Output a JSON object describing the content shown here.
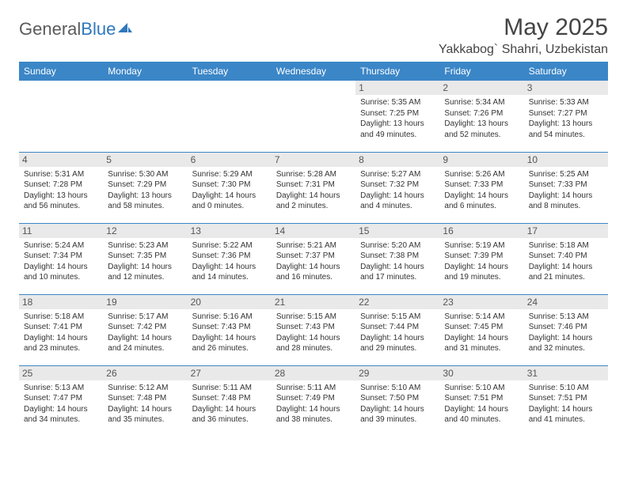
{
  "brand": {
    "part1": "General",
    "part2": "Blue"
  },
  "title": "May 2025",
  "location": "Yakkabog` Shahri, Uzbekistan",
  "colors": {
    "header_bg": "#3b86c7",
    "header_text": "#ffffff",
    "daynum_bg": "#e9e9e9",
    "border": "#3b86c7",
    "title_color": "#444444",
    "logo_gray": "#5a5a5a",
    "logo_blue": "#2f78bd"
  },
  "font": {
    "family": "Arial",
    "title_size_pt": 22,
    "header_size_pt": 9,
    "body_size_pt": 7.5
  },
  "weekdays": [
    "Sunday",
    "Monday",
    "Tuesday",
    "Wednesday",
    "Thursday",
    "Friday",
    "Saturday"
  ],
  "weeks": [
    [
      null,
      null,
      null,
      null,
      {
        "n": "1",
        "sunrise": "5:35 AM",
        "sunset": "7:25 PM",
        "daylight": "13 hours and 49 minutes."
      },
      {
        "n": "2",
        "sunrise": "5:34 AM",
        "sunset": "7:26 PM",
        "daylight": "13 hours and 52 minutes."
      },
      {
        "n": "3",
        "sunrise": "5:33 AM",
        "sunset": "7:27 PM",
        "daylight": "13 hours and 54 minutes."
      }
    ],
    [
      {
        "n": "4",
        "sunrise": "5:31 AM",
        "sunset": "7:28 PM",
        "daylight": "13 hours and 56 minutes."
      },
      {
        "n": "5",
        "sunrise": "5:30 AM",
        "sunset": "7:29 PM",
        "daylight": "13 hours and 58 minutes."
      },
      {
        "n": "6",
        "sunrise": "5:29 AM",
        "sunset": "7:30 PM",
        "daylight": "14 hours and 0 minutes."
      },
      {
        "n": "7",
        "sunrise": "5:28 AM",
        "sunset": "7:31 PM",
        "daylight": "14 hours and 2 minutes."
      },
      {
        "n": "8",
        "sunrise": "5:27 AM",
        "sunset": "7:32 PM",
        "daylight": "14 hours and 4 minutes."
      },
      {
        "n": "9",
        "sunrise": "5:26 AM",
        "sunset": "7:33 PM",
        "daylight": "14 hours and 6 minutes."
      },
      {
        "n": "10",
        "sunrise": "5:25 AM",
        "sunset": "7:33 PM",
        "daylight": "14 hours and 8 minutes."
      }
    ],
    [
      {
        "n": "11",
        "sunrise": "5:24 AM",
        "sunset": "7:34 PM",
        "daylight": "14 hours and 10 minutes."
      },
      {
        "n": "12",
        "sunrise": "5:23 AM",
        "sunset": "7:35 PM",
        "daylight": "14 hours and 12 minutes."
      },
      {
        "n": "13",
        "sunrise": "5:22 AM",
        "sunset": "7:36 PM",
        "daylight": "14 hours and 14 minutes."
      },
      {
        "n": "14",
        "sunrise": "5:21 AM",
        "sunset": "7:37 PM",
        "daylight": "14 hours and 16 minutes."
      },
      {
        "n": "15",
        "sunrise": "5:20 AM",
        "sunset": "7:38 PM",
        "daylight": "14 hours and 17 minutes."
      },
      {
        "n": "16",
        "sunrise": "5:19 AM",
        "sunset": "7:39 PM",
        "daylight": "14 hours and 19 minutes."
      },
      {
        "n": "17",
        "sunrise": "5:18 AM",
        "sunset": "7:40 PM",
        "daylight": "14 hours and 21 minutes."
      }
    ],
    [
      {
        "n": "18",
        "sunrise": "5:18 AM",
        "sunset": "7:41 PM",
        "daylight": "14 hours and 23 minutes."
      },
      {
        "n": "19",
        "sunrise": "5:17 AM",
        "sunset": "7:42 PM",
        "daylight": "14 hours and 24 minutes."
      },
      {
        "n": "20",
        "sunrise": "5:16 AM",
        "sunset": "7:43 PM",
        "daylight": "14 hours and 26 minutes."
      },
      {
        "n": "21",
        "sunrise": "5:15 AM",
        "sunset": "7:43 PM",
        "daylight": "14 hours and 28 minutes."
      },
      {
        "n": "22",
        "sunrise": "5:15 AM",
        "sunset": "7:44 PM",
        "daylight": "14 hours and 29 minutes."
      },
      {
        "n": "23",
        "sunrise": "5:14 AM",
        "sunset": "7:45 PM",
        "daylight": "14 hours and 31 minutes."
      },
      {
        "n": "24",
        "sunrise": "5:13 AM",
        "sunset": "7:46 PM",
        "daylight": "14 hours and 32 minutes."
      }
    ],
    [
      {
        "n": "25",
        "sunrise": "5:13 AM",
        "sunset": "7:47 PM",
        "daylight": "14 hours and 34 minutes."
      },
      {
        "n": "26",
        "sunrise": "5:12 AM",
        "sunset": "7:48 PM",
        "daylight": "14 hours and 35 minutes."
      },
      {
        "n": "27",
        "sunrise": "5:11 AM",
        "sunset": "7:48 PM",
        "daylight": "14 hours and 36 minutes."
      },
      {
        "n": "28",
        "sunrise": "5:11 AM",
        "sunset": "7:49 PM",
        "daylight": "14 hours and 38 minutes."
      },
      {
        "n": "29",
        "sunrise": "5:10 AM",
        "sunset": "7:50 PM",
        "daylight": "14 hours and 39 minutes."
      },
      {
        "n": "30",
        "sunrise": "5:10 AM",
        "sunset": "7:51 PM",
        "daylight": "14 hours and 40 minutes."
      },
      {
        "n": "31",
        "sunrise": "5:10 AM",
        "sunset": "7:51 PM",
        "daylight": "14 hours and 41 minutes."
      }
    ]
  ],
  "labels": {
    "sunrise": "Sunrise:",
    "sunset": "Sunset:",
    "daylight": "Daylight:"
  }
}
